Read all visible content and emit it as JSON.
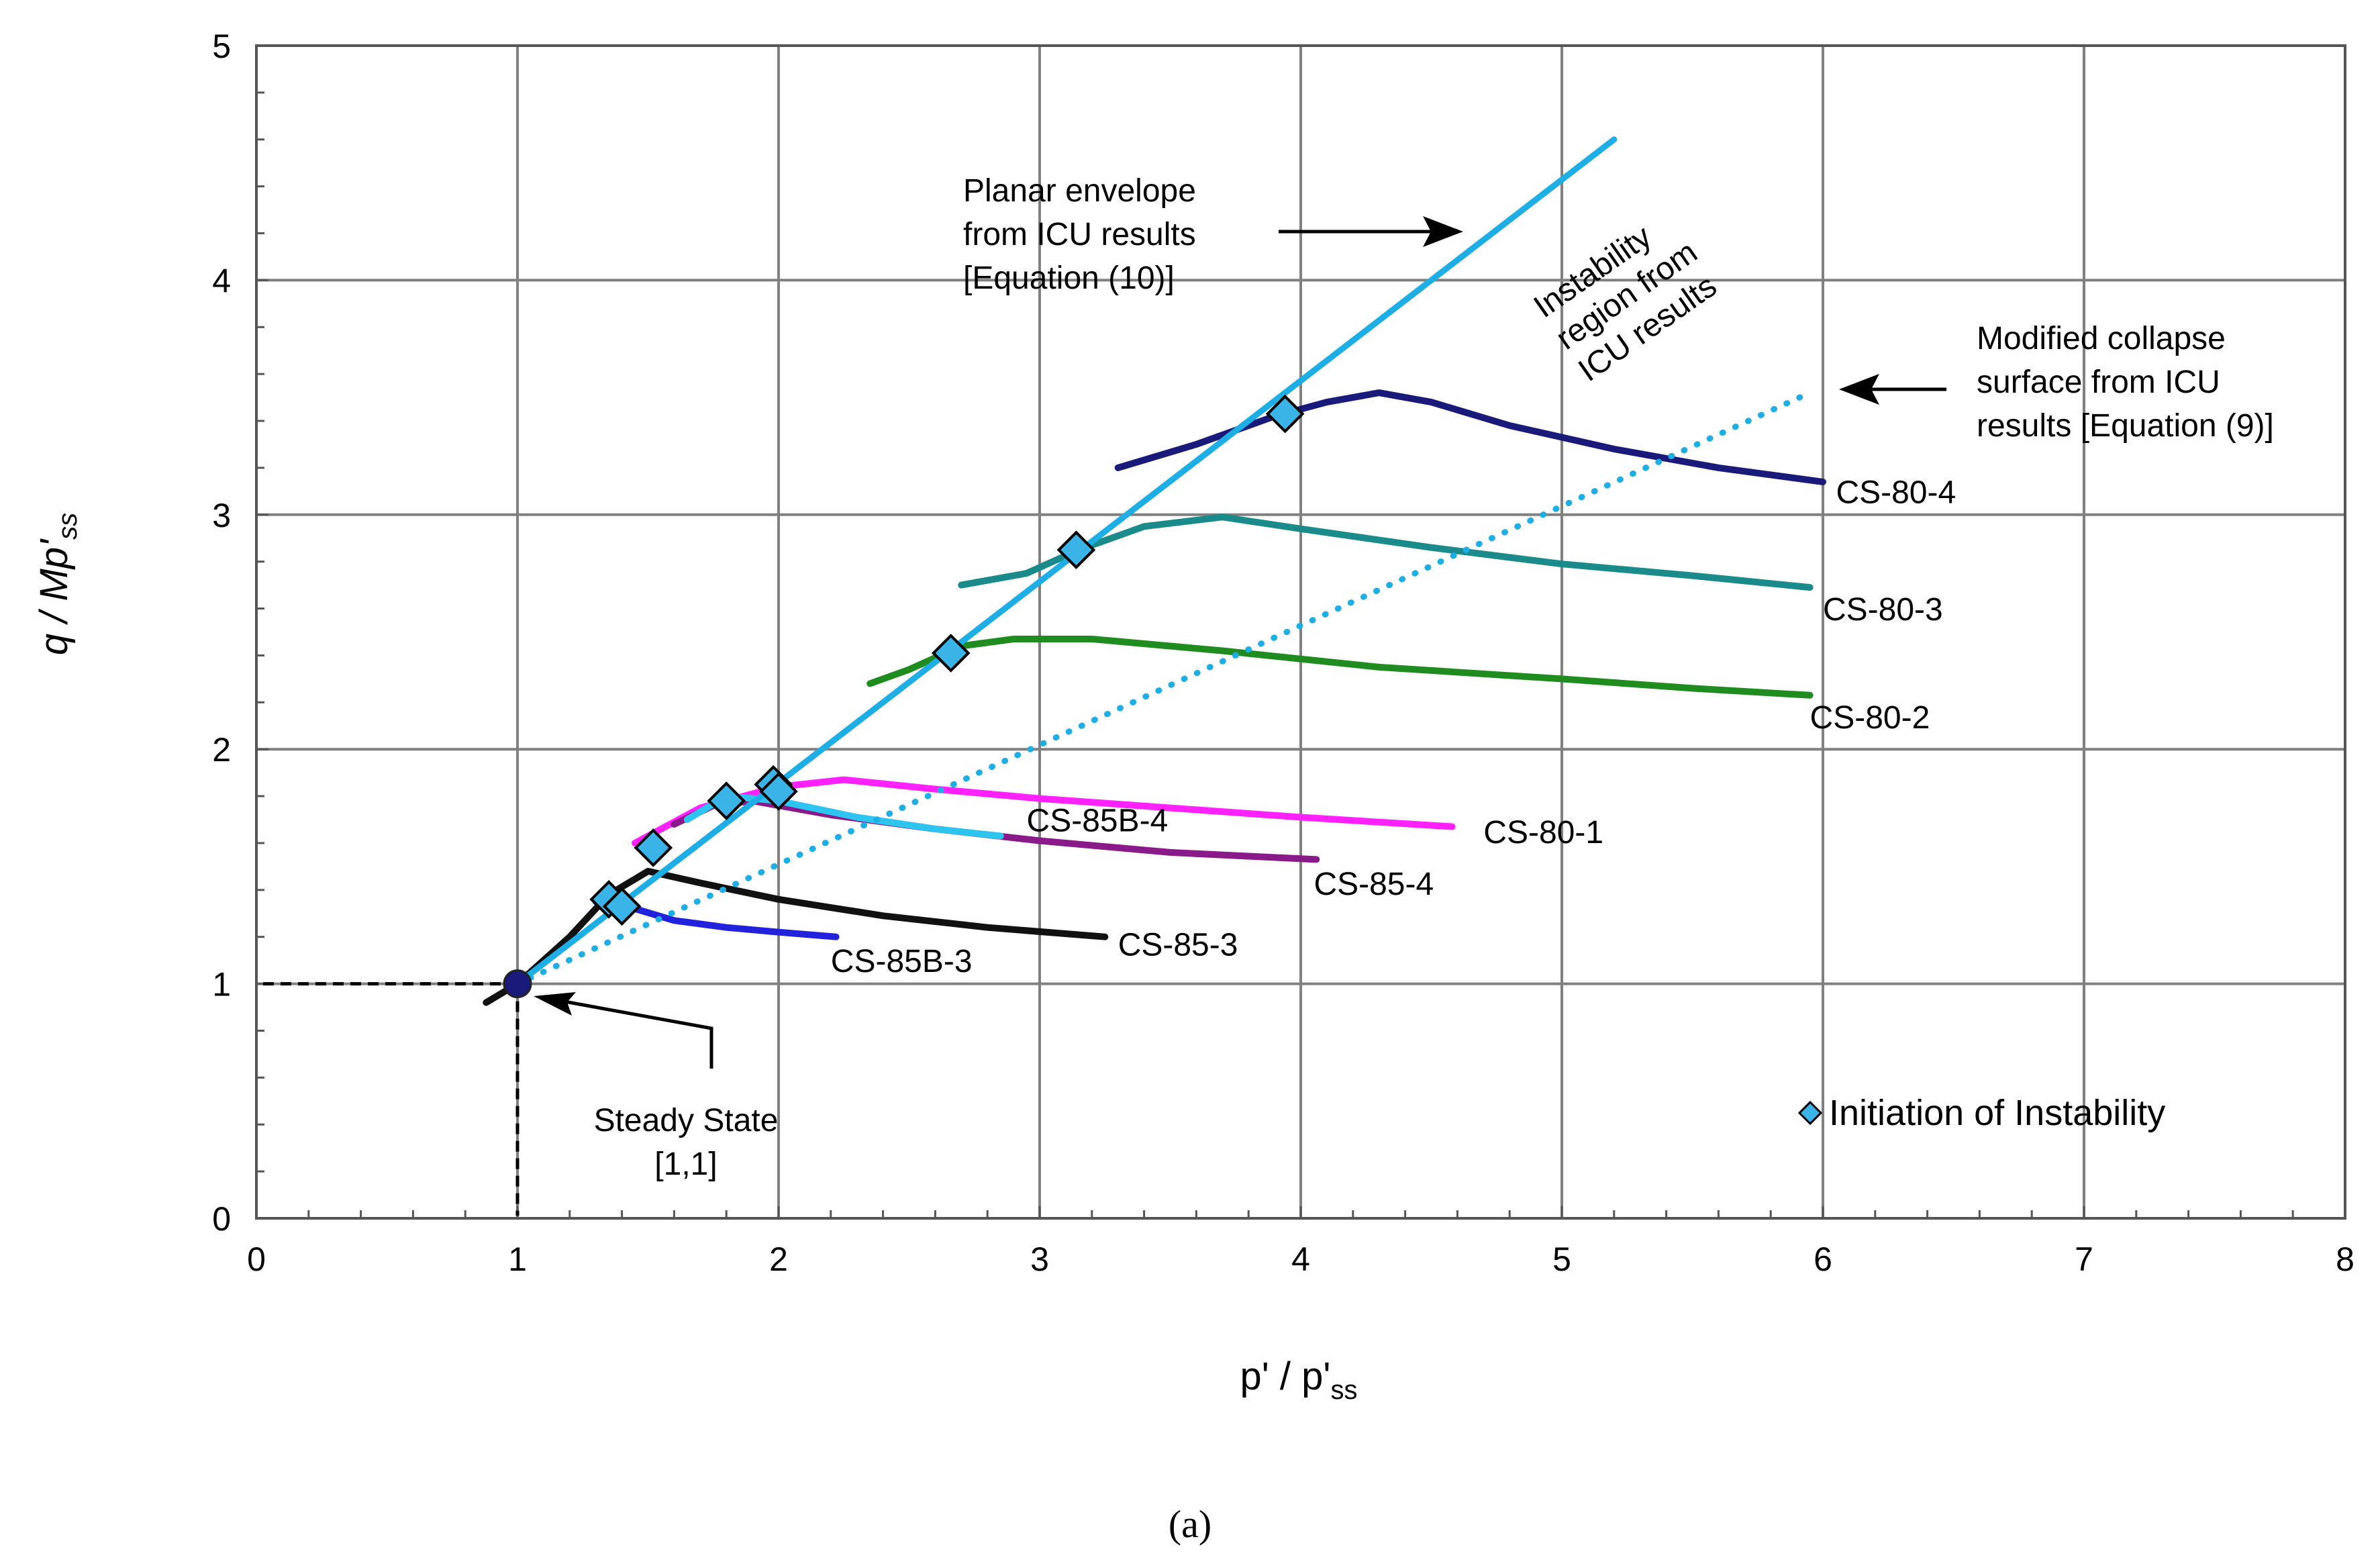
{
  "chart_data": {
    "type": "scatter",
    "x_axis": {
      "title": "p' / p'",
      "title_sub": "ss",
      "min": 0,
      "max": 8,
      "ticks": [
        "0",
        "1",
        "2",
        "3",
        "4",
        "5",
        "6",
        "7",
        "8"
      ]
    },
    "y_axis": {
      "title": "q / Mp'",
      "title_sub": "ss",
      "min": 0,
      "max": 5,
      "ticks": [
        "0",
        "1",
        "2",
        "3",
        "4",
        "5"
      ]
    },
    "grid": true,
    "caption": "(a)",
    "steady_state": {
      "x": 1,
      "y": 1,
      "label_line1": "Steady State",
      "label_line2": "[1,1]"
    },
    "planar_envelope": {
      "x": [
        1,
        5.2
      ],
      "y": [
        1,
        4.6
      ],
      "color": "#1eaee6",
      "label_lines": [
        "Planar envelope",
        "from ICU results",
        "[Equation (10)]"
      ]
    },
    "collapse_surface": {
      "x": [
        1,
        5.95
      ],
      "y": [
        1,
        3.52
      ],
      "color": "#1eaee6",
      "label_lines": [
        "Modified collapse",
        "surface from ICU",
        "results [Equation (9)]"
      ]
    },
    "instability_region": {
      "label_lines": [
        "Instability",
        "region from",
        "ICU results"
      ]
    },
    "series": [
      {
        "name": "CS-80-4",
        "color": "#1a1a7a",
        "x": [
          3.3,
          3.6,
          3.9,
          4.1,
          4.3,
          4.5,
          4.8,
          5.2,
          5.6,
          6.0
        ],
        "y": [
          3.2,
          3.3,
          3.42,
          3.48,
          3.52,
          3.48,
          3.38,
          3.28,
          3.2,
          3.14
        ]
      },
      {
        "name": "CS-80-3",
        "color": "#1a8a8a",
        "x": [
          2.7,
          2.95,
          3.15,
          3.4,
          3.7,
          4.0,
          4.5,
          5.0,
          5.5,
          5.95
        ],
        "y": [
          2.7,
          2.75,
          2.85,
          2.95,
          2.99,
          2.94,
          2.86,
          2.79,
          2.74,
          2.69
        ]
      },
      {
        "name": "CS-80-2",
        "color": "#1e8c1e",
        "x": [
          2.35,
          2.5,
          2.7,
          2.9,
          3.2,
          3.7,
          4.3,
          5.0,
          5.5,
          5.95
        ],
        "y": [
          2.28,
          2.34,
          2.44,
          2.47,
          2.47,
          2.42,
          2.35,
          2.3,
          2.26,
          2.23
        ]
      },
      {
        "name": "CS-80-1",
        "color": "#ff22ff",
        "x": [
          1.45,
          1.7,
          2.0,
          2.25,
          2.6,
          3.0,
          3.5,
          4.0,
          4.58
        ],
        "y": [
          1.6,
          1.75,
          1.84,
          1.87,
          1.83,
          1.79,
          1.75,
          1.71,
          1.67
        ]
      },
      {
        "name": "CS-85-4",
        "color": "#8a1a8a",
        "x": [
          1.6,
          1.75,
          1.9,
          2.2,
          2.6,
          3.0,
          3.5,
          4.06
        ],
        "y": [
          1.68,
          1.76,
          1.78,
          1.72,
          1.66,
          1.61,
          1.56,
          1.53
        ]
      },
      {
        "name": "CS-85B-4",
        "color": "#2ec4f0",
        "x": [
          1.65,
          1.8,
          2.0,
          2.3,
          2.6,
          2.85
        ],
        "y": [
          1.7,
          1.8,
          1.78,
          1.71,
          1.66,
          1.63
        ]
      },
      {
        "name": "CS-85-3",
        "color": "#111111",
        "x": [
          0.88,
          1.0,
          1.2,
          1.35,
          1.5,
          1.7,
          2.0,
          2.4,
          2.8,
          3.25
        ],
        "y": [
          0.92,
          1.0,
          1.2,
          1.38,
          1.48,
          1.43,
          1.36,
          1.29,
          1.24,
          1.2
        ]
      },
      {
        "name": "CS-85B-3",
        "color": "#2222dd",
        "x": [
          1.3,
          1.45,
          1.6,
          1.8,
          2.0,
          2.22
        ],
        "y": [
          1.35,
          1.32,
          1.27,
          1.24,
          1.22,
          1.2
        ]
      }
    ],
    "series_label_pos": [
      {
        "name": "CS-80-4",
        "x": 6.05,
        "y": 3.05
      },
      {
        "name": "CS-80-3",
        "x": 6.0,
        "y": 2.55
      },
      {
        "name": "CS-80-2",
        "x": 5.95,
        "y": 2.09
      },
      {
        "name": "CS-80-1",
        "x": 4.7,
        "y": 1.6
      },
      {
        "name": "CS-85-4",
        "x": 4.05,
        "y": 1.38
      },
      {
        "name": "CS-85B-4",
        "x": 2.95,
        "y": 1.65
      },
      {
        "name": "CS-85-3",
        "x": 3.3,
        "y": 1.12
      },
      {
        "name": "CS-85B-3",
        "x": 2.2,
        "y": 1.05
      }
    ],
    "instability_points": {
      "name": "Initiation of Instability",
      "color": "#3ab4e6",
      "x": [
        1.35,
        1.4,
        1.52,
        1.8,
        1.98,
        2.0,
        2.66,
        3.14,
        3.94
      ],
      "y": [
        1.36,
        1.33,
        1.58,
        1.78,
        1.85,
        1.82,
        2.41,
        2.85,
        3.43
      ]
    }
  }
}
